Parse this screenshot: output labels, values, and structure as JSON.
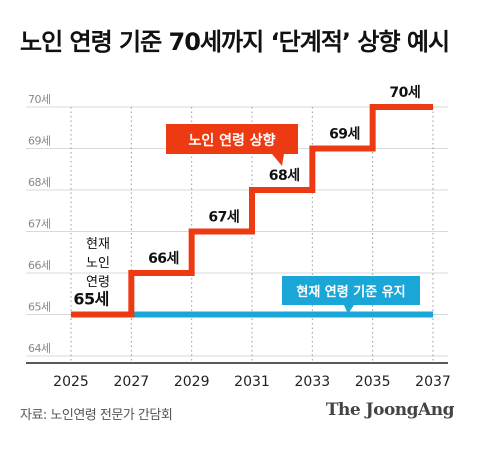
{
  "title": "노인 연령 기준 70세까지 ‘단계적’ 상향 예시",
  "source": "자료: 노인연령 전문가 간담회",
  "logo": "The JoongAng",
  "colors": {
    "raise": "#ee3a12",
    "keep": "#1aa7d8",
    "grid": "#d9d9d9",
    "axis": "#222222"
  },
  "chart_data": {
    "type": "line",
    "x": [
      2025,
      2027,
      2029,
      2031,
      2033,
      2035,
      2037
    ],
    "xticks": [
      "2025",
      "2027",
      "2029",
      "2031",
      "2033",
      "2035",
      "2037"
    ],
    "ylim": [
      64,
      70
    ],
    "yticks": [
      "64세",
      "65세",
      "66세",
      "67세",
      "68세",
      "69세",
      "70세"
    ],
    "series": [
      {
        "name": "노인 연령 상향",
        "step": true,
        "points": [
          [
            2025,
            65
          ],
          [
            2027,
            65
          ],
          [
            2027,
            66
          ],
          [
            2029,
            66
          ],
          [
            2029,
            67
          ],
          [
            2031,
            67
          ],
          [
            2031,
            68
          ],
          [
            2033,
            68
          ],
          [
            2033,
            69
          ],
          [
            2035,
            69
          ],
          [
            2035,
            70
          ],
          [
            2037,
            70
          ]
        ]
      },
      {
        "name": "현재 연령 기준 유지",
        "points": [
          [
            2027,
            65
          ],
          [
            2037,
            65
          ]
        ]
      }
    ],
    "step_labels": [
      {
        "x": 2026,
        "y": 65,
        "text": "65세"
      },
      {
        "x": 2028,
        "y": 66,
        "text": "66세"
      },
      {
        "x": 2030,
        "y": 67,
        "text": "67세"
      },
      {
        "x": 2032,
        "y": 68,
        "text": "68세"
      },
      {
        "x": 2034,
        "y": 69,
        "text": "69세"
      },
      {
        "x": 2036,
        "y": 70,
        "text": "70세"
      }
    ],
    "current_note": [
      "현재",
      "노인",
      "연령"
    ],
    "callouts": {
      "raise": "노인 연령 상향",
      "keep": "현재 연령 기준 유지"
    }
  }
}
